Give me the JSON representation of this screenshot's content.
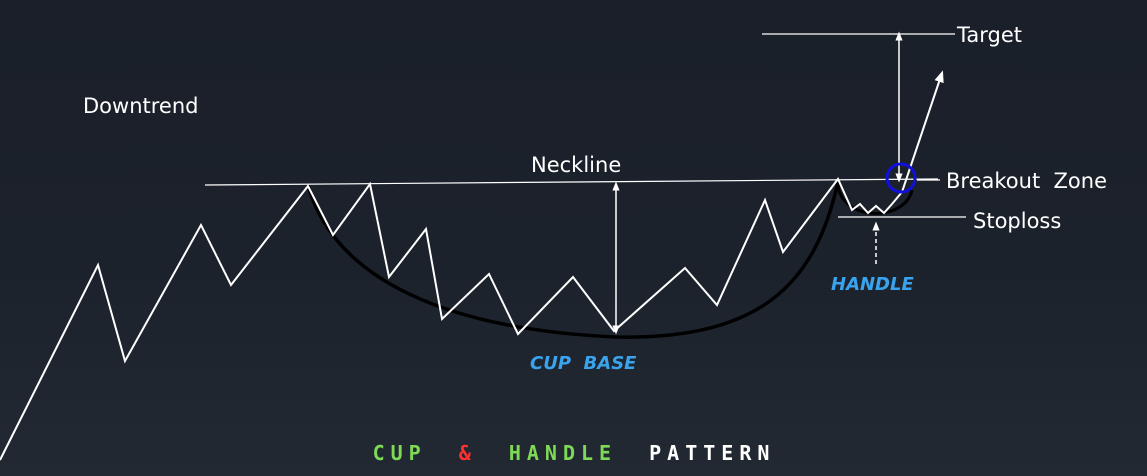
{
  "labels": {
    "downtrend": "Downtrend",
    "neckline": "Neckline",
    "target": "Target",
    "breakout_zone": "Breakout  Zone",
    "stoploss": "Stoploss",
    "handle": "HANDLE",
    "cup_base": "CUP  BASE"
  },
  "title": {
    "part1": "CUP",
    "part2": "&",
    "part3": "HANDLE",
    "part4": "PATTERN"
  },
  "colors": {
    "background": "#1c222c",
    "price_line": "#ffffff",
    "cup_curve": "#000000",
    "highlight_blue": "#3aa3ee",
    "breakout_circle": "#1010dd",
    "title_green": "#7ed957",
    "title_red": "#ff3131",
    "title_white": "#ffffff"
  }
}
